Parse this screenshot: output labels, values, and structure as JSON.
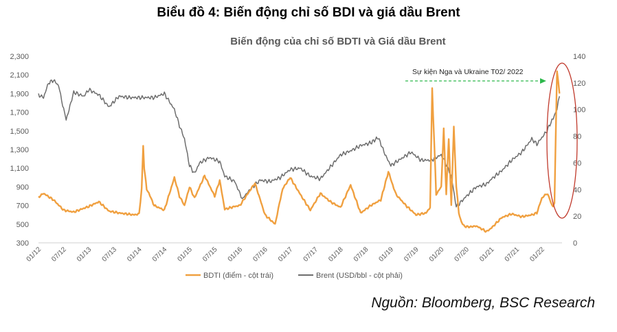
{
  "heading": "Biểu đồ 4: Biến động chỉ số BDI và giá dầu Brent",
  "source": "Nguồn: Bloomberg, BSC Research",
  "colors": {
    "bdti": "#f0a040",
    "brent": "#6d6d6d",
    "annotation": "#2db84c",
    "ellipse": "#c0392b",
    "axis_text": "#595959"
  },
  "chart_data": {
    "type": "line",
    "title": "Biến động của chỉ số BDTI và Giá dầu Brent",
    "annotation": "Sự kiện Nga và Ukraine T02/ 2022",
    "x_tick_labels": [
      "01/12",
      "07/12",
      "01/13",
      "07/13",
      "01/14",
      "07/14",
      "01/15",
      "07/15",
      "01/16",
      "07/16",
      "01/17",
      "07/17",
      "01/18",
      "07/18",
      "01/19",
      "07/19",
      "01/20",
      "07/20",
      "01/21",
      "07/21",
      "01/22"
    ],
    "y_left": {
      "label": "BDTI (điểm - cột trái)",
      "ylim": [
        300,
        2300
      ],
      "ticks": [
        "300",
        "500",
        "700",
        "900",
        "1,100",
        "1,300",
        "1,500",
        "1,700",
        "1,900",
        "2,100",
        "2,300"
      ],
      "tick_values": [
        300,
        500,
        700,
        900,
        1100,
        1300,
        1500,
        1700,
        1900,
        2100,
        2300
      ]
    },
    "y_right": {
      "label": "Brent (USD/bbl - cột phải)",
      "ylim": [
        0,
        140
      ],
      "ticks": [
        "0",
        "20",
        "40",
        "60",
        "80",
        "100",
        "120",
        "140"
      ],
      "tick_values": [
        0,
        20,
        40,
        60,
        80,
        100,
        120,
        140
      ]
    },
    "time_range": [
      2012.0,
      2022.4
    ],
    "series": [
      {
        "name": "BDTI (điểm - cột trái)",
        "axis": "left",
        "t": [
          2012.0,
          2012.1,
          2012.3,
          2012.5,
          2012.7,
          2013.0,
          2013.2,
          2013.4,
          2013.6,
          2013.9,
          2014.0,
          2014.05,
          2014.08,
          2014.1,
          2014.15,
          2014.3,
          2014.5,
          2014.7,
          2014.8,
          2014.9,
          2015.0,
          2015.1,
          2015.3,
          2015.5,
          2015.6,
          2015.7,
          2015.9,
          2016.0,
          2016.3,
          2016.5,
          2016.7,
          2016.85,
          2017.0,
          2017.2,
          2017.4,
          2017.6,
          2017.8,
          2018.0,
          2018.2,
          2018.4,
          2018.6,
          2018.8,
          2018.95,
          2019.1,
          2019.3,
          2019.5,
          2019.7,
          2019.78,
          2019.82,
          2019.9,
          2020.0,
          2020.05,
          2020.1,
          2020.15,
          2020.2,
          2020.25,
          2020.3,
          2020.35,
          2020.4,
          2020.45,
          2020.55,
          2020.7,
          2020.9,
          2021.0,
          2021.2,
          2021.4,
          2021.6,
          2021.8,
          2021.9,
          2022.0,
          2022.1,
          2022.15,
          2022.2,
          2022.22,
          2022.25,
          2022.3,
          2022.35
        ],
        "values": [
          790,
          830,
          760,
          650,
          630,
          690,
          740,
          640,
          620,
          600,
          610,
          880,
          1340,
          1100,
          880,
          700,
          650,
          1000,
          800,
          700,
          900,
          780,
          1020,
          800,
          970,
          660,
          690,
          700,
          940,
          600,
          500,
          880,
          1000,
          820,
          650,
          830,
          740,
          680,
          920,
          620,
          700,
          760,
          1060,
          820,
          700,
          600,
          620,
          680,
          1960,
          820,
          900,
          1530,
          830,
          1420,
          700,
          1540,
          900,
          620,
          520,
          480,
          470,
          480,
          420,
          460,
          570,
          610,
          580,
          600,
          620,
          780,
          830,
          780,
          700,
          690,
          720,
          2140,
          1900
        ]
      },
      {
        "name": "Brent (USD/bbl - cột phải)",
        "axis": "right",
        "t": [
          2012.0,
          2012.1,
          2012.2,
          2012.3,
          2012.4,
          2012.5,
          2012.55,
          2012.7,
          2012.9,
          2013.0,
          2013.2,
          2013.4,
          2013.5,
          2013.6,
          2013.8,
          2014.0,
          2014.3,
          2014.5,
          2014.7,
          2014.8,
          2014.9,
          2015.0,
          2015.1,
          2015.2,
          2015.4,
          2015.6,
          2015.7,
          2015.9,
          2016.0,
          2016.05,
          2016.2,
          2016.4,
          2016.6,
          2016.8,
          2017.0,
          2017.2,
          2017.4,
          2017.6,
          2017.8,
          2018.0,
          2018.2,
          2018.4,
          2018.6,
          2018.75,
          2018.9,
          2019.0,
          2019.2,
          2019.4,
          2019.6,
          2019.8,
          2020.0,
          2020.1,
          2020.2,
          2020.3,
          2020.5,
          2020.7,
          2020.9,
          2021.0,
          2021.2,
          2021.4,
          2021.6,
          2021.8,
          2021.9,
          2022.0,
          2022.1,
          2022.2,
          2022.25,
          2022.3,
          2022.35
        ],
        "values": [
          111,
          109,
          120,
          122,
          118,
          100,
          92,
          113,
          110,
          115,
          111,
          102,
          106,
          110,
          109,
          109,
          109,
          112,
          100,
          88,
          78,
          58,
          52,
          60,
          64,
          61,
          50,
          46,
          37,
          33,
          40,
          47,
          46,
          49,
          55,
          56,
          50,
          48,
          57,
          66,
          69,
          73,
          75,
          79,
          65,
          58,
          63,
          68,
          62,
          62,
          66,
          59,
          50,
          27,
          35,
          42,
          44,
          48,
          54,
          62,
          68,
          78,
          74,
          79,
          84,
          92,
          95,
          100,
          110
        ]
      }
    ]
  }
}
